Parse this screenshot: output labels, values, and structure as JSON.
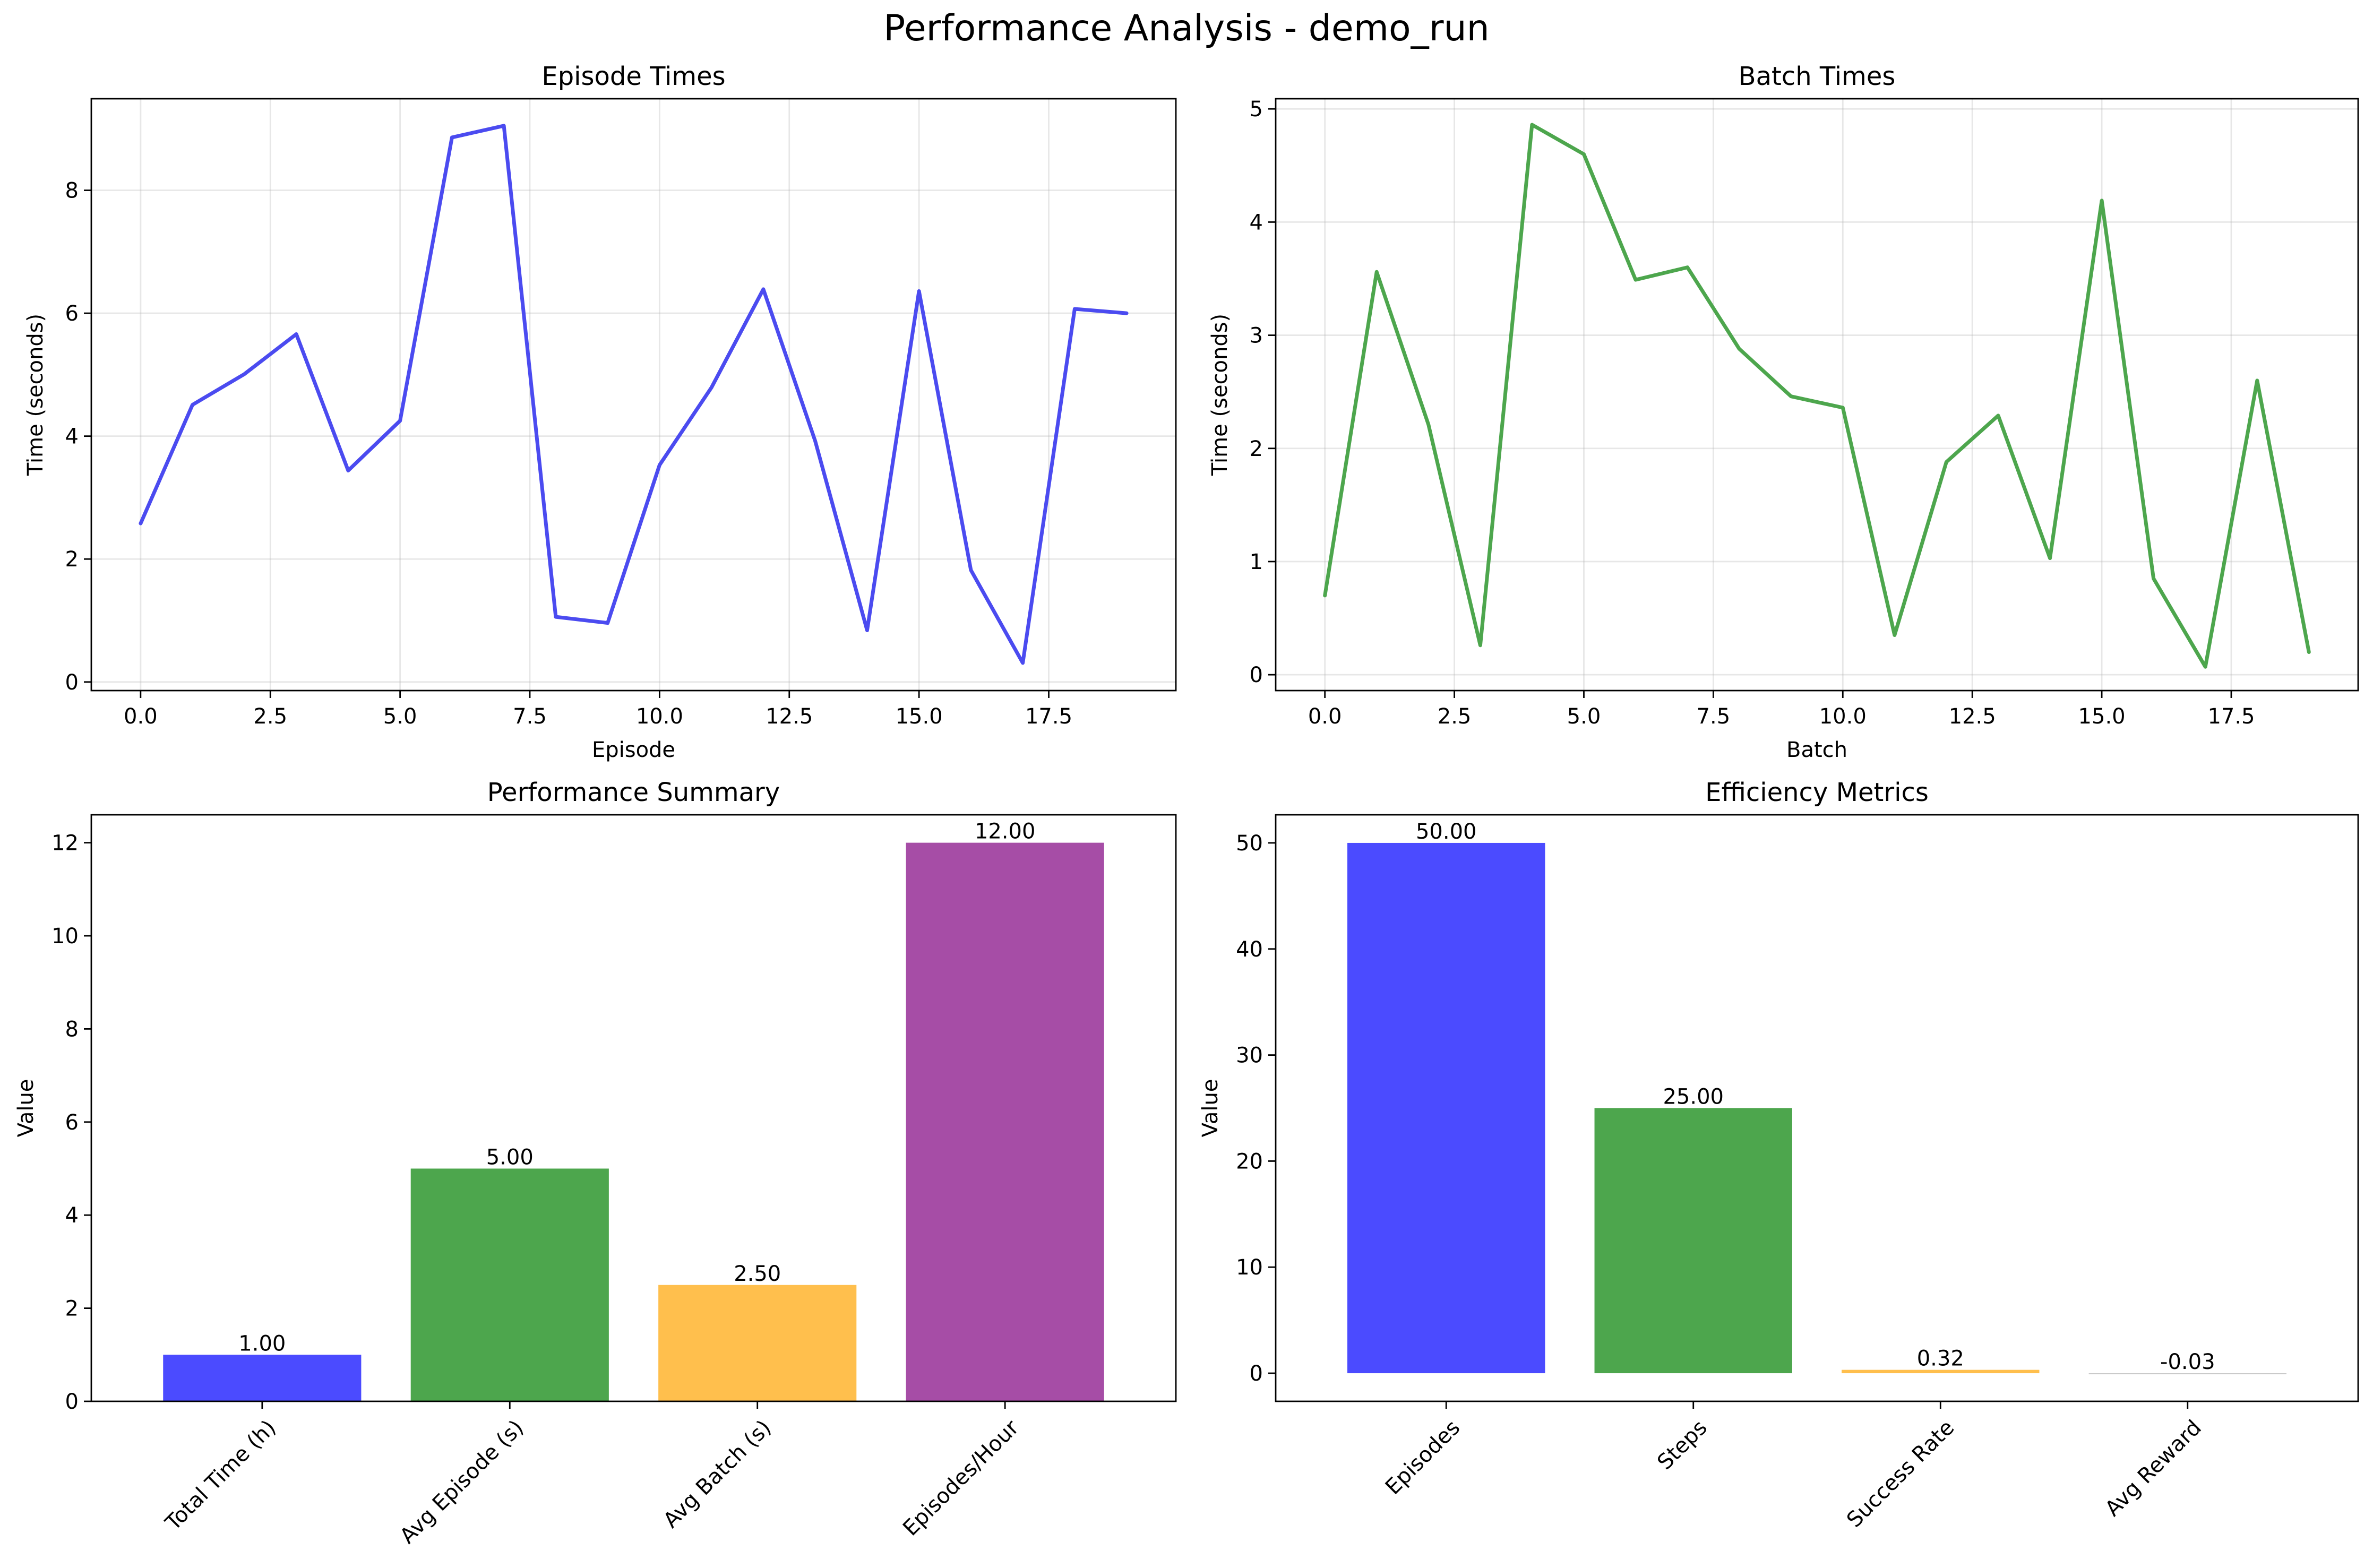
{
  "figure": {
    "title": "Performance Analysis - demo_run"
  },
  "chart_data": [
    {
      "id": "episode_times",
      "type": "line",
      "title": "Episode Times",
      "xlabel": "Episode",
      "ylabel": "Time (seconds)",
      "xlim": [
        -0.95,
        19.95
      ],
      "ylim": [
        -0.14,
        9.49
      ],
      "xticks": [
        0,
        2.5,
        5,
        7.5,
        10,
        12.5,
        15,
        17.5
      ],
      "xtick_labels": [
        "0.0",
        "2.5",
        "5.0",
        "7.5",
        "10.0",
        "12.5",
        "15.0",
        "17.5"
      ],
      "yticks": [
        0,
        2,
        4,
        6,
        8
      ],
      "ytick_labels": [
        "0",
        "2",
        "4",
        "6",
        "8"
      ],
      "grid": true,
      "color": "#4b4bf0",
      "x": [
        0,
        1,
        2,
        3,
        4,
        5,
        6,
        7,
        8,
        9,
        10,
        11,
        12,
        13,
        14,
        15,
        16,
        17,
        18,
        19
      ],
      "y": [
        2.58,
        4.51,
        5.01,
        5.66,
        3.44,
        4.25,
        8.86,
        9.05,
        1.06,
        0.96,
        3.53,
        4.79,
        6.39,
        3.92,
        0.84,
        6.36,
        1.82,
        0.31,
        6.07,
        6.0
      ]
    },
    {
      "id": "batch_times",
      "type": "line",
      "title": "Batch Times",
      "xlabel": "Batch",
      "ylabel": "Time (seconds)",
      "xlim": [
        -0.95,
        19.95
      ],
      "ylim": [
        -0.14,
        5.09
      ],
      "xticks": [
        0,
        2.5,
        5,
        7.5,
        10,
        12.5,
        15,
        17.5
      ],
      "xtick_labels": [
        "0.0",
        "2.5",
        "5.0",
        "7.5",
        "10.0",
        "12.5",
        "15.0",
        "17.5"
      ],
      "yticks": [
        0,
        1,
        2,
        3,
        4,
        5
      ],
      "ytick_labels": [
        "0",
        "1",
        "2",
        "3",
        "4",
        "5"
      ],
      "grid": true,
      "color": "#4da64d",
      "x": [
        0,
        1,
        2,
        3,
        4,
        5,
        6,
        7,
        8,
        9,
        10,
        11,
        12,
        13,
        14,
        15,
        16,
        17,
        18,
        19
      ],
      "y": [
        0.7,
        3.56,
        2.21,
        0.26,
        4.86,
        4.6,
        3.49,
        3.6,
        2.88,
        2.46,
        2.36,
        0.35,
        1.88,
        2.29,
        1.03,
        4.19,
        0.85,
        0.07,
        2.6,
        0.2
      ]
    },
    {
      "id": "performance_summary",
      "type": "bar",
      "title": "Performance Summary",
      "xlabel": "",
      "ylabel": "Value",
      "ylim": [
        0,
        12.6
      ],
      "yticks": [
        0,
        2,
        4,
        6,
        8,
        10,
        12
      ],
      "ytick_labels": [
        "0",
        "2",
        "4",
        "6",
        "8",
        "10",
        "12"
      ],
      "grid": false,
      "categories": [
        "Total Time (h)",
        "Avg Episode (s)",
        "Avg Batch (s)",
        "Episodes/Hour"
      ],
      "values": [
        1.0,
        5.0,
        2.5,
        12.0
      ],
      "value_labels": [
        "1.00",
        "5.00",
        "2.50",
        "12.00"
      ],
      "colors": [
        "#4b4bff",
        "#4da64d",
        "#ffbf4d",
        "#a64da6"
      ]
    },
    {
      "id": "efficiency_metrics",
      "type": "bar",
      "title": "Efficiency Metrics",
      "xlabel": "",
      "ylabel": "Value",
      "ylim": [
        -2.65,
        52.65
      ],
      "yticks": [
        0,
        10,
        20,
        30,
        40,
        50
      ],
      "ytick_labels": [
        "0",
        "10",
        "20",
        "30",
        "40",
        "50"
      ],
      "grid": false,
      "categories": [
        "Episodes",
        "Steps",
        "Success Rate",
        "Avg Reward"
      ],
      "values": [
        50.0,
        25.0,
        0.32,
        -0.03
      ],
      "value_labels": [
        "50.00",
        "25.00",
        "0.32",
        "-0.03"
      ],
      "colors": [
        "#4b4bff",
        "#4da64d",
        "#ffbf4d",
        "#c8c8c8"
      ]
    }
  ]
}
